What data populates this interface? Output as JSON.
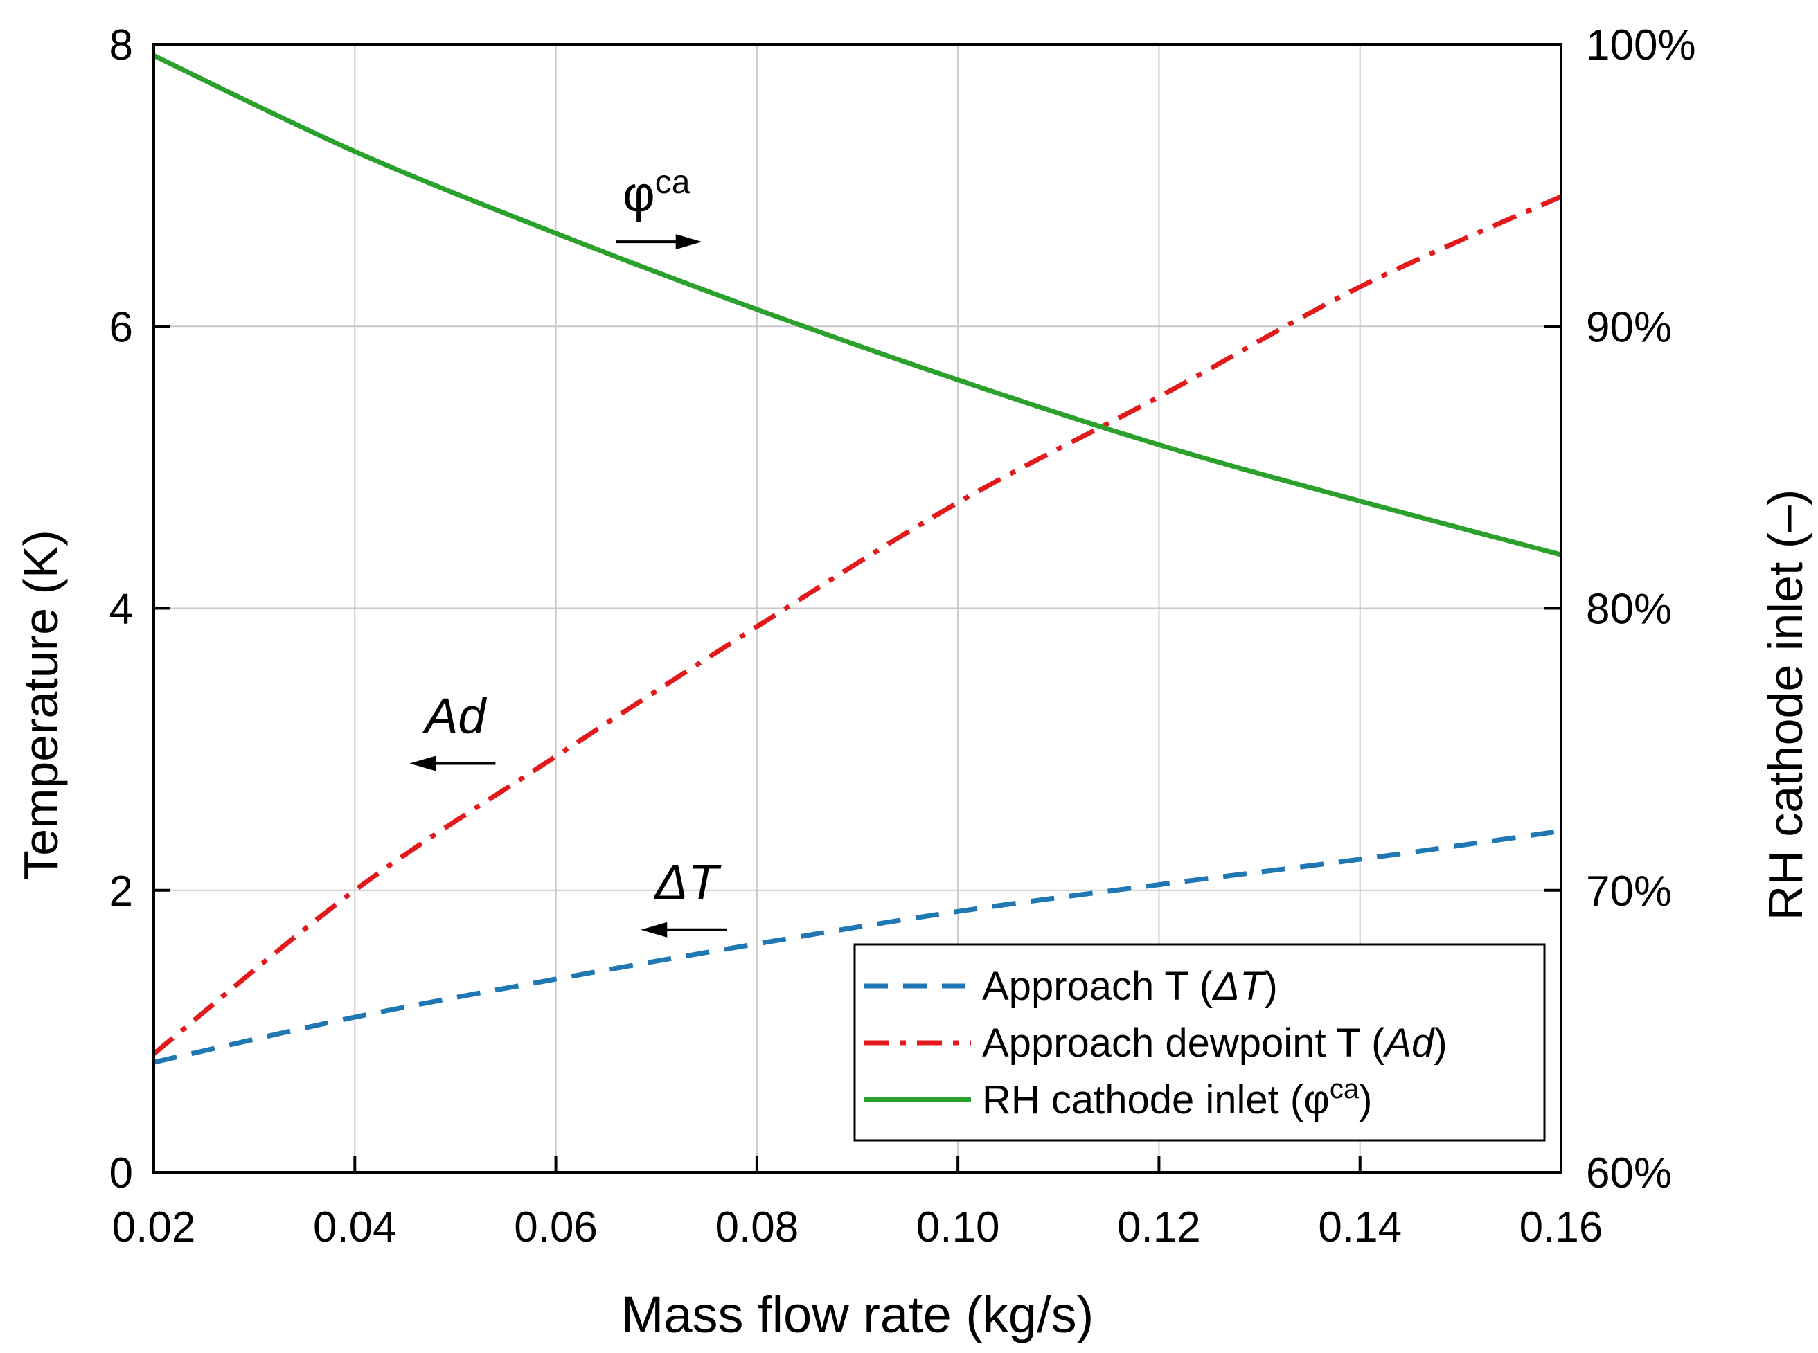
{
  "chart_data": {
    "type": "line",
    "xlabel": "Mass flow rate (kg/s)",
    "ylabel": "Temperature (K)",
    "y2label": "RH cathode inlet (–)",
    "xlim": [
      0.02,
      0.16
    ],
    "ylim": [
      0,
      8
    ],
    "y2lim": [
      60,
      100
    ],
    "x_ticks": [
      "0.02",
      "0.04",
      "0.06",
      "0.08",
      "0.10",
      "0.12",
      "0.14",
      "0.16"
    ],
    "y_ticks": [
      "0",
      "2",
      "4",
      "6",
      "8"
    ],
    "y2_ticks": [
      "60%",
      "70%",
      "80%",
      "90%",
      "100%"
    ],
    "grid": true,
    "legend_position": "bottom-right",
    "x": [
      0.02,
      0.04,
      0.06,
      0.08,
      0.1,
      0.12,
      0.14,
      0.16
    ],
    "series": [
      {
        "name": "Approach T",
        "symbol": "ΔT",
        "axis": "left",
        "style": "dashed",
        "color": "#1f77b4",
        "values": [
          0.78,
          1.1,
          1.37,
          1.62,
          1.85,
          2.04,
          2.22,
          2.42
        ]
      },
      {
        "name": "Approach dewpoint T",
        "symbol": "Ad",
        "axis": "left",
        "style": "dashdot",
        "color": "#e31a1c",
        "values": [
          0.84,
          2.0,
          2.95,
          3.87,
          4.75,
          5.5,
          6.28,
          6.92
        ]
      },
      {
        "name": "RH cathode inlet",
        "symbol": "φ",
        "symbol_sup": "ca",
        "axis": "right",
        "style": "solid",
        "color": "#2ca02c",
        "values": [
          99.6,
          96.2,
          93.3,
          90.6,
          88.1,
          85.8,
          83.8,
          81.9
        ]
      }
    ],
    "annotations": [
      {
        "label": "φ",
        "sup": "ca",
        "arrow": "right",
        "x": 0.07,
        "y": 6.6
      },
      {
        "label": "Ad",
        "sup": "",
        "arrow": "left",
        "x": 0.05,
        "y": 2.9
      },
      {
        "label": "ΔT",
        "sup": "",
        "arrow": "left",
        "x": 0.073,
        "y": 1.72
      }
    ]
  }
}
